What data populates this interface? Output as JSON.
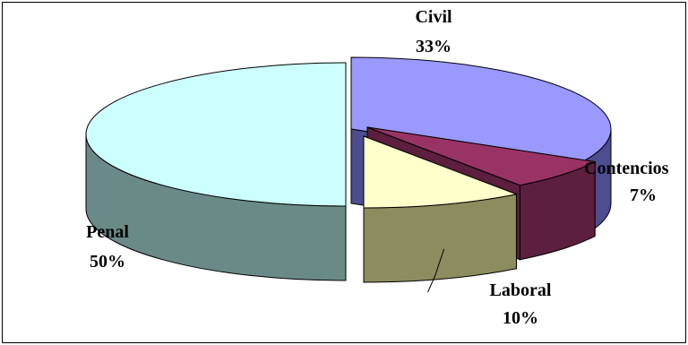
{
  "chart_data": {
    "type": "pie",
    "three_d": true,
    "exploded": true,
    "slices": [
      {
        "label": "Civil",
        "percent_label": "33%",
        "value": 33,
        "top_color": "#9999ff",
        "side_color": "#4d4d8f"
      },
      {
        "label": "Contencios",
        "percent_label": "7%",
        "value": 7,
        "top_color": "#993366",
        "side_color": "#5c1f3d"
      },
      {
        "label": "Laboral",
        "percent_label": "10%",
        "value": 10,
        "top_color": "#ffffcc",
        "side_color": "#8c8c5f"
      },
      {
        "label": "Penal",
        "percent_label": "50%",
        "value": 50,
        "top_color": "#ccffff",
        "side_color": "#6a8a88"
      }
    ]
  }
}
